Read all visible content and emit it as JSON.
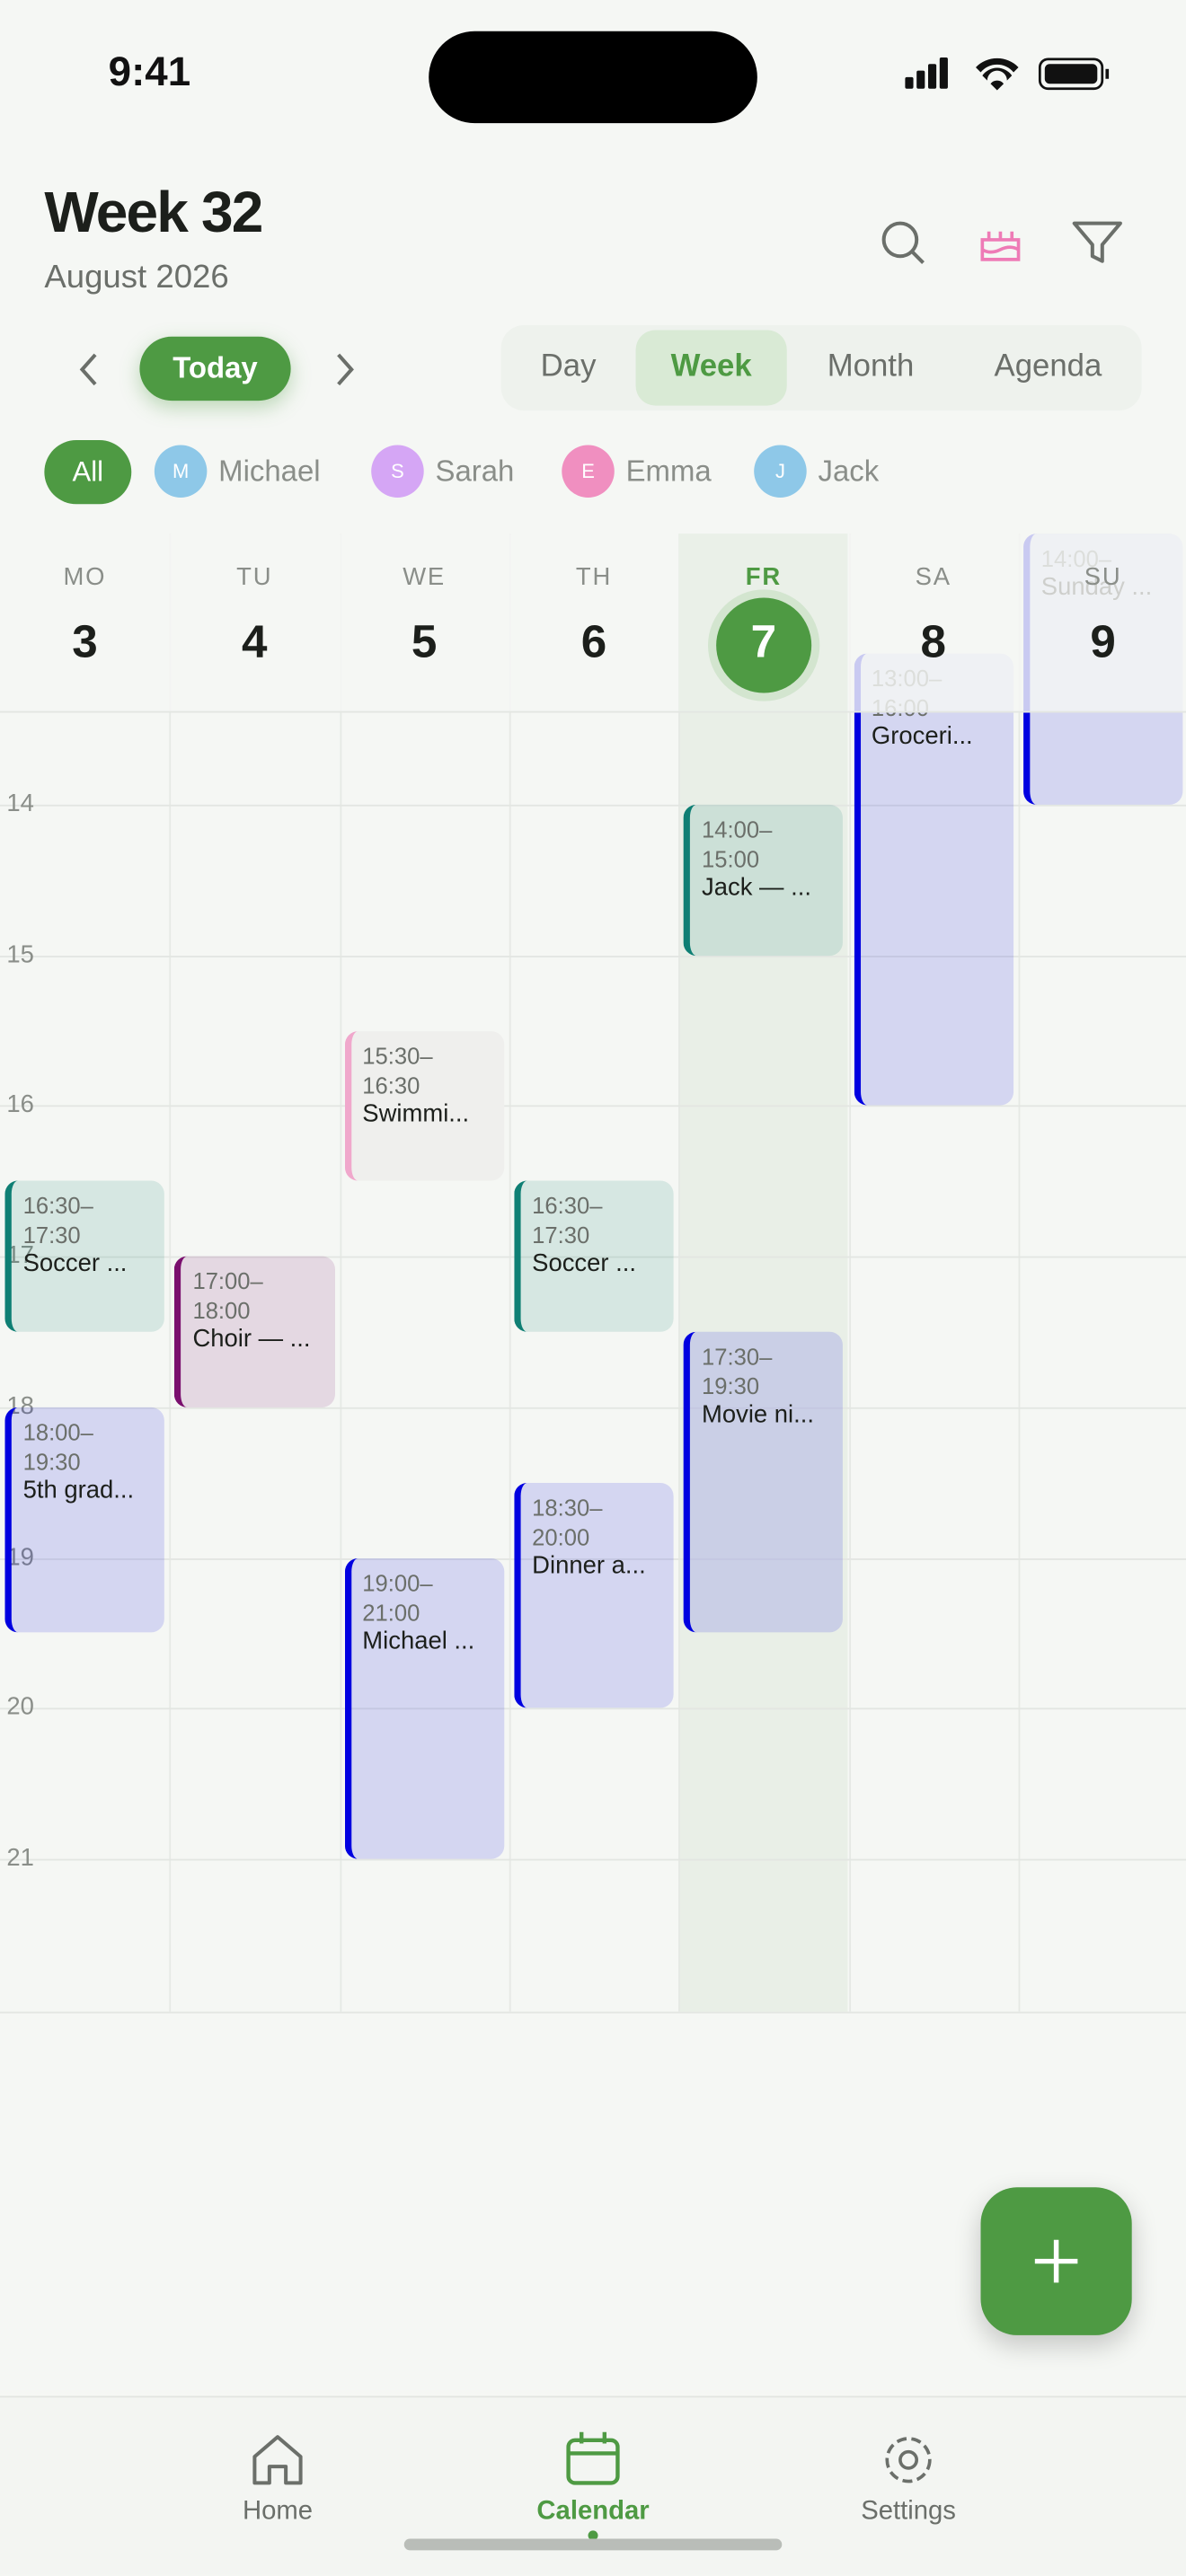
{
  "status": {
    "time": "9:41"
  },
  "header": {
    "title": "Week 32",
    "subtitle": "August 2026"
  },
  "nav": {
    "today": "Today"
  },
  "views": {
    "items": [
      "Day",
      "Week",
      "Month",
      "Agenda"
    ],
    "active": 1
  },
  "filters": {
    "all": "All",
    "people": [
      {
        "initial": "M",
        "name": "Michael",
        "color": "#8ec8e8"
      },
      {
        "initial": "S",
        "name": "Sarah",
        "color": "#d5a6f5"
      },
      {
        "initial": "E",
        "name": "Emma",
        "color": "#f08fc0"
      },
      {
        "initial": "J",
        "name": "Jack",
        "color": "#8ec8e8"
      }
    ]
  },
  "hours": [
    "14",
    "15",
    "16",
    "17",
    "18",
    "19",
    "20",
    "21"
  ],
  "days": [
    {
      "abbr": "MO",
      "num": "3",
      "events": [
        {
          "start": "16:30–",
          "end": "17:30",
          "title": "Soccer ...",
          "color": "#0f7f74"
        },
        {
          "start": "18:00–",
          "end": "19:30",
          "title": "5th grad...",
          "color": "#0000e0"
        }
      ]
    },
    {
      "abbr": "TU",
      "num": "4",
      "events": [
        {
          "start": "17:00–",
          "end": "18:00",
          "title": "Choir — ...",
          "color": "#7a0f6e"
        }
      ]
    },
    {
      "abbr": "WE",
      "num": "5",
      "events": [
        {
          "start": "15:30–",
          "end": "16:30",
          "title": "Swimmi...",
          "color": "#f0a8cc"
        },
        {
          "start": "19:00–",
          "end": "21:00",
          "title": "Michael ...",
          "color": "#0000e0"
        }
      ]
    },
    {
      "abbr": "TH",
      "num": "6",
      "events": [
        {
          "start": "16:30–",
          "end": "17:30",
          "title": "Soccer ...",
          "color": "#0f7f74"
        },
        {
          "start": "18:30–",
          "end": "20:00",
          "title": "Dinner a...",
          "color": "#0000e0"
        }
      ]
    },
    {
      "abbr": "FR",
      "num": "7",
      "today": true,
      "events": [
        {
          "start": "14:00–",
          "end": "15:00",
          "title": "Jack — ...",
          "color": "#0f7f74"
        },
        {
          "start": "17:30–",
          "end": "19:30",
          "title": "Movie ni...",
          "color": "#0000e0"
        }
      ]
    },
    {
      "abbr": "SA",
      "num": "8",
      "events": [
        {
          "start": "13:00–",
          "end": "16:00",
          "title": "Groceri...",
          "color": "#0000e0"
        }
      ]
    },
    {
      "abbr": "SU",
      "num": "9",
      "events": [
        {
          "start": "14:00–",
          "title": "Sunday ...",
          "color": "#0000e0"
        }
      ]
    }
  ],
  "tabs": {
    "items": [
      "Home",
      "Calendar",
      "Settings"
    ],
    "active": 1
  }
}
